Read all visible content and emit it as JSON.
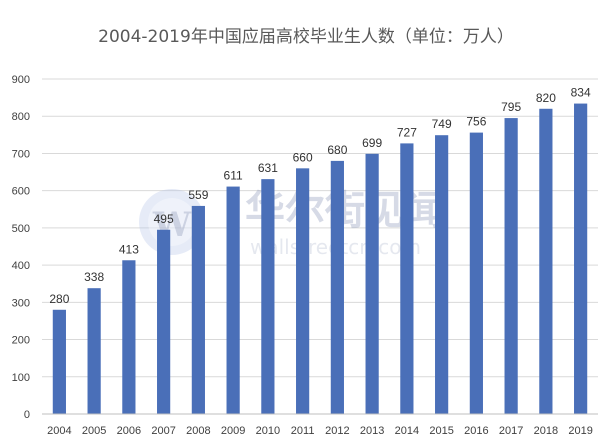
{
  "chart_data": {
    "type": "bar",
    "title": "2004-2019年中国应届高校毕业生人数（单位：万人）",
    "categories": [
      "2004",
      "2005",
      "2006",
      "2007",
      "2008",
      "2009",
      "2010",
      "2011",
      "2012",
      "2013",
      "2014",
      "2015",
      "2016",
      "2017",
      "2018",
      "2019"
    ],
    "values": [
      280,
      338,
      413,
      495,
      559,
      611,
      631,
      660,
      680,
      699,
      727,
      749,
      756,
      795,
      820,
      834
    ],
    "ylim": [
      0,
      900
    ],
    "yticks": [
      0,
      100,
      200,
      300,
      400,
      500,
      600,
      700,
      800,
      900
    ],
    "grid": true,
    "bar_color": "#4a6fb8",
    "xlabel": "",
    "ylabel": ""
  },
  "watermark": {
    "logo_letter": "W",
    "name": "华尔街见闻",
    "domain": "wallstreetcn.com"
  }
}
